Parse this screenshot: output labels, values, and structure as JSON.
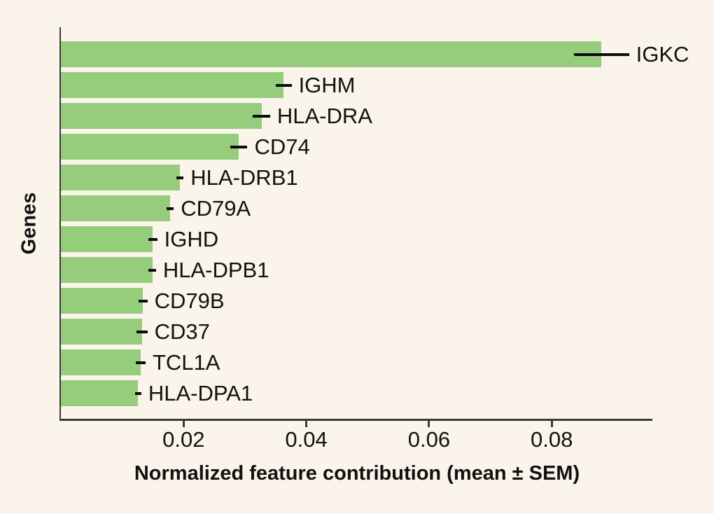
{
  "chart_data": {
    "type": "bar",
    "orientation": "horizontal",
    "title": "",
    "xlabel": "Normalized feature contribution (mean ± SEM)",
    "ylabel": "Genes",
    "categories": [
      "IGKC",
      "IGHM",
      "HLA-DRA",
      "CD74",
      "HLA-DRB1",
      "CD79A",
      "IGHD",
      "HLA-DPB1",
      "CD79B",
      "CD37",
      "TCL1A",
      "HLA-DPA1"
    ],
    "series": [
      {
        "name": "Normalized feature contribution (mean)",
        "values": [
          0.0881,
          0.0363,
          0.0327,
          0.029,
          0.0194,
          0.0178,
          0.015,
          0.0149,
          0.0134,
          0.0132,
          0.013,
          0.0126
        ],
        "errors_sem": [
          0.0045,
          0.0013,
          0.0014,
          0.0014,
          0.0006,
          0.0006,
          0.0007,
          0.0006,
          0.0007,
          0.0009,
          0.0008,
          0.0005
        ]
      }
    ],
    "xticks": [
      0.02,
      0.04,
      0.06,
      0.08
    ],
    "xtick_labels": [
      "0.02",
      "0.04",
      "0.06",
      "0.08"
    ],
    "xlim": [
      0,
      0.0964
    ],
    "grid": false,
    "legend": "none",
    "colors": {
      "bar_fill": "#96cd7c",
      "background": "#faf4ea",
      "axis": "#3a3a3a",
      "error_bar": "#0d0d0d",
      "text": "#111111"
    }
  }
}
